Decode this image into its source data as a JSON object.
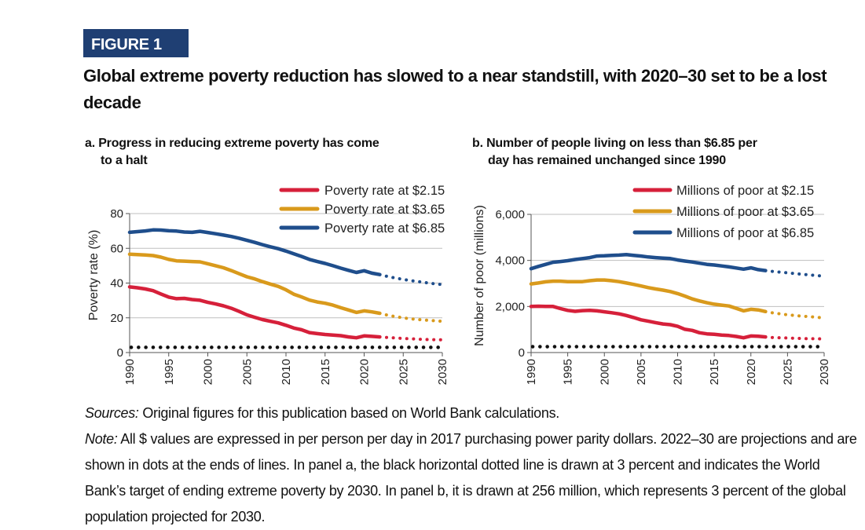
{
  "figure": {
    "label": "FIGURE 1",
    "title": "Global extreme poverty reduction has slowed to a near standstill, with 2020–30 set to be a lost decade"
  },
  "chart_data": [
    {
      "type": "line",
      "panel_title_line1": "a. Progress in reducing extreme poverty has come",
      "panel_title_line2": "to a halt",
      "ylabel": "Poverty rate (%)",
      "xlabel": "",
      "ylim": [
        0,
        80
      ],
      "yticks": [
        0,
        20,
        40,
        60,
        80
      ],
      "ytick_labels": [
        "0",
        "20",
        "40",
        "60",
        "80"
      ],
      "xlim": [
        1990,
        2030
      ],
      "xticks": [
        1990,
        1995,
        2000,
        2005,
        2010,
        2015,
        2020,
        2025,
        2030
      ],
      "grid": true,
      "legend_position": "top-right",
      "projection_start": 2022,
      "series": [
        {
          "name": "Poverty rate at $2.15",
          "color": "#d6203a",
          "x": [
            1990,
            1991,
            1992,
            1993,
            1994,
            1995,
            1996,
            1997,
            1998,
            1999,
            2000,
            2001,
            2002,
            2003,
            2004,
            2005,
            2006,
            2007,
            2008,
            2009,
            2010,
            2011,
            2012,
            2013,
            2014,
            2015,
            2016,
            2017,
            2018,
            2019,
            2020,
            2021,
            2022,
            2023,
            2024,
            2025,
            2026,
            2027,
            2028,
            2029,
            2030
          ],
          "values": [
            37.8,
            37.3,
            36.6,
            35.6,
            33.7,
            31.9,
            31.0,
            31.2,
            30.5,
            30.1,
            28.9,
            28.0,
            26.9,
            25.5,
            23.7,
            21.7,
            20.3,
            19.0,
            18.0,
            17.1,
            15.7,
            14.1,
            13.1,
            11.5,
            10.9,
            10.4,
            10.1,
            9.7,
            9.0,
            8.5,
            9.6,
            9.3,
            9.0,
            8.7,
            8.4,
            8.1,
            7.9,
            7.7,
            7.5,
            7.4,
            7.3
          ]
        },
        {
          "name": "Poverty rate at $3.65",
          "color": "#d99a1c",
          "x": [
            1990,
            1991,
            1992,
            1993,
            1994,
            1995,
            1996,
            1997,
            1998,
            1999,
            2000,
            2001,
            2002,
            2003,
            2004,
            2005,
            2006,
            2007,
            2008,
            2009,
            2010,
            2011,
            2012,
            2013,
            2014,
            2015,
            2016,
            2017,
            2018,
            2019,
            2020,
            2021,
            2022,
            2023,
            2024,
            2025,
            2026,
            2027,
            2028,
            2029,
            2030
          ],
          "values": [
            56.6,
            56.4,
            56.2,
            55.8,
            54.9,
            53.6,
            52.8,
            52.6,
            52.4,
            52.2,
            51.1,
            50.0,
            48.8,
            47.2,
            45.4,
            43.6,
            42.4,
            40.8,
            39.4,
            38.1,
            36.1,
            33.6,
            32.0,
            30.2,
            29.1,
            28.4,
            27.3,
            25.8,
            24.5,
            23.1,
            24.0,
            23.4,
            22.6,
            21.5,
            20.7,
            20.0,
            19.4,
            19.0,
            18.6,
            18.3,
            18.0
          ]
        },
        {
          "name": "Poverty rate at $6.85",
          "color": "#1f4e8c",
          "x": [
            1990,
            1991,
            1992,
            1993,
            1994,
            1995,
            1996,
            1997,
            1998,
            1999,
            2000,
            2001,
            2002,
            2003,
            2004,
            2005,
            2006,
            2007,
            2008,
            2009,
            2010,
            2011,
            2012,
            2013,
            2014,
            2015,
            2016,
            2017,
            2018,
            2019,
            2020,
            2021,
            2022,
            2023,
            2024,
            2025,
            2026,
            2027,
            2028,
            2029,
            2030
          ],
          "values": [
            69.2,
            69.6,
            70.0,
            70.6,
            70.5,
            70.1,
            69.9,
            69.4,
            69.2,
            69.8,
            69.1,
            68.4,
            67.6,
            66.8,
            65.8,
            64.6,
            63.4,
            62.1,
            60.9,
            59.8,
            58.4,
            56.8,
            55.3,
            53.6,
            52.4,
            51.3,
            50.0,
            48.6,
            47.3,
            46.1,
            47.1,
            45.7,
            44.9,
            43.8,
            42.9,
            42.1,
            41.4,
            40.8,
            40.2,
            39.6,
            39.1
          ]
        }
      ],
      "target_line": {
        "value": 3,
        "color": "#111111"
      }
    },
    {
      "type": "line",
      "panel_title_line1": "b. Number of people living on less than $6.85 per",
      "panel_title_line2": "day has remained unchanged since 1990",
      "ylabel": "Number of poor (millions)",
      "xlabel": "",
      "ylim": [
        0,
        6000
      ],
      "yticks": [
        0,
        2000,
        4000,
        6000
      ],
      "ytick_labels": [
        "0",
        "2,000",
        "4,000",
        "6,000"
      ],
      "xlim": [
        1990,
        2030
      ],
      "xticks": [
        1990,
        1995,
        2000,
        2005,
        2010,
        2015,
        2020,
        2025,
        2030
      ],
      "grid": true,
      "legend_position": "top-right",
      "projection_start": 2022,
      "series": [
        {
          "name": "Millions of poor at $2.15",
          "color": "#d6203a",
          "x": [
            1990,
            1991,
            1992,
            1993,
            1994,
            1995,
            1996,
            1997,
            1998,
            1999,
            2000,
            2001,
            2002,
            2003,
            2004,
            2005,
            2006,
            2007,
            2008,
            2009,
            2010,
            2011,
            2012,
            2013,
            2014,
            2015,
            2016,
            2017,
            2018,
            2019,
            2020,
            2021,
            2022,
            2023,
            2024,
            2025,
            2026,
            2027,
            2028,
            2029,
            2030
          ],
          "values": [
            2000,
            2010,
            2000,
            2000,
            1910,
            1830,
            1790,
            1820,
            1830,
            1810,
            1770,
            1730,
            1680,
            1610,
            1520,
            1420,
            1360,
            1300,
            1240,
            1210,
            1140,
            1010,
            960,
            860,
            810,
            790,
            760,
            740,
            700,
            640,
            720,
            710,
            680,
            650,
            640,
            630,
            620,
            610,
            600,
            600,
            590
          ]
        },
        {
          "name": "Millions of poor at $3.65",
          "color": "#d99a1c",
          "x": [
            1990,
            1991,
            1992,
            1993,
            1994,
            1995,
            1996,
            1997,
            1998,
            1999,
            2000,
            2001,
            2002,
            2003,
            2004,
            2005,
            2006,
            2007,
            2008,
            2009,
            2010,
            2011,
            2012,
            2013,
            2014,
            2015,
            2016,
            2017,
            2018,
            2019,
            2020,
            2021,
            2022,
            2023,
            2024,
            2025,
            2026,
            2027,
            2028,
            2029,
            2030
          ],
          "values": [
            2980,
            3020,
            3070,
            3100,
            3100,
            3080,
            3080,
            3080,
            3120,
            3150,
            3150,
            3120,
            3080,
            3020,
            2960,
            2890,
            2820,
            2760,
            2710,
            2650,
            2560,
            2450,
            2330,
            2240,
            2160,
            2100,
            2060,
            2020,
            1920,
            1810,
            1880,
            1850,
            1780,
            1720,
            1680,
            1640,
            1610,
            1580,
            1560,
            1530,
            1500
          ]
        },
        {
          "name": "Millions of poor at $6.85",
          "color": "#1f4e8c",
          "x": [
            1990,
            1991,
            1992,
            1993,
            1994,
            1995,
            1996,
            1997,
            1998,
            1999,
            2000,
            2001,
            2002,
            2003,
            2004,
            2005,
            2006,
            2007,
            2008,
            2009,
            2010,
            2011,
            2012,
            2013,
            2014,
            2015,
            2016,
            2017,
            2018,
            2019,
            2020,
            2021,
            2022,
            2023,
            2024,
            2025,
            2026,
            2027,
            2028,
            2029,
            2030
          ],
          "values": [
            3640,
            3740,
            3830,
            3920,
            3950,
            3990,
            4040,
            4080,
            4120,
            4190,
            4200,
            4220,
            4230,
            4250,
            4220,
            4190,
            4150,
            4120,
            4100,
            4080,
            4020,
            3970,
            3930,
            3880,
            3830,
            3800,
            3760,
            3720,
            3670,
            3620,
            3680,
            3600,
            3560,
            3520,
            3490,
            3460,
            3430,
            3400,
            3370,
            3340,
            3320
          ]
        }
      ],
      "target_line": {
        "value": 256,
        "color": "#111111"
      }
    }
  ],
  "footnote": {
    "sources_label": "Sources:",
    "sources_text": " Original figures for this publication based on World Bank calculations.",
    "note_label": "Note:",
    "note_text": " All $ values are expressed in per person per day in 2017 purchasing power parity dollars. 2022–30 are projections and are shown in dots at the ends of lines. In panel a, the black horizontal dotted line is drawn at 3 percent and indicates the World Bank’s target of ending extreme poverty by 2030. In panel b, it is drawn at 256 million, which represents 3 percent of the global population projected for 2030."
  }
}
